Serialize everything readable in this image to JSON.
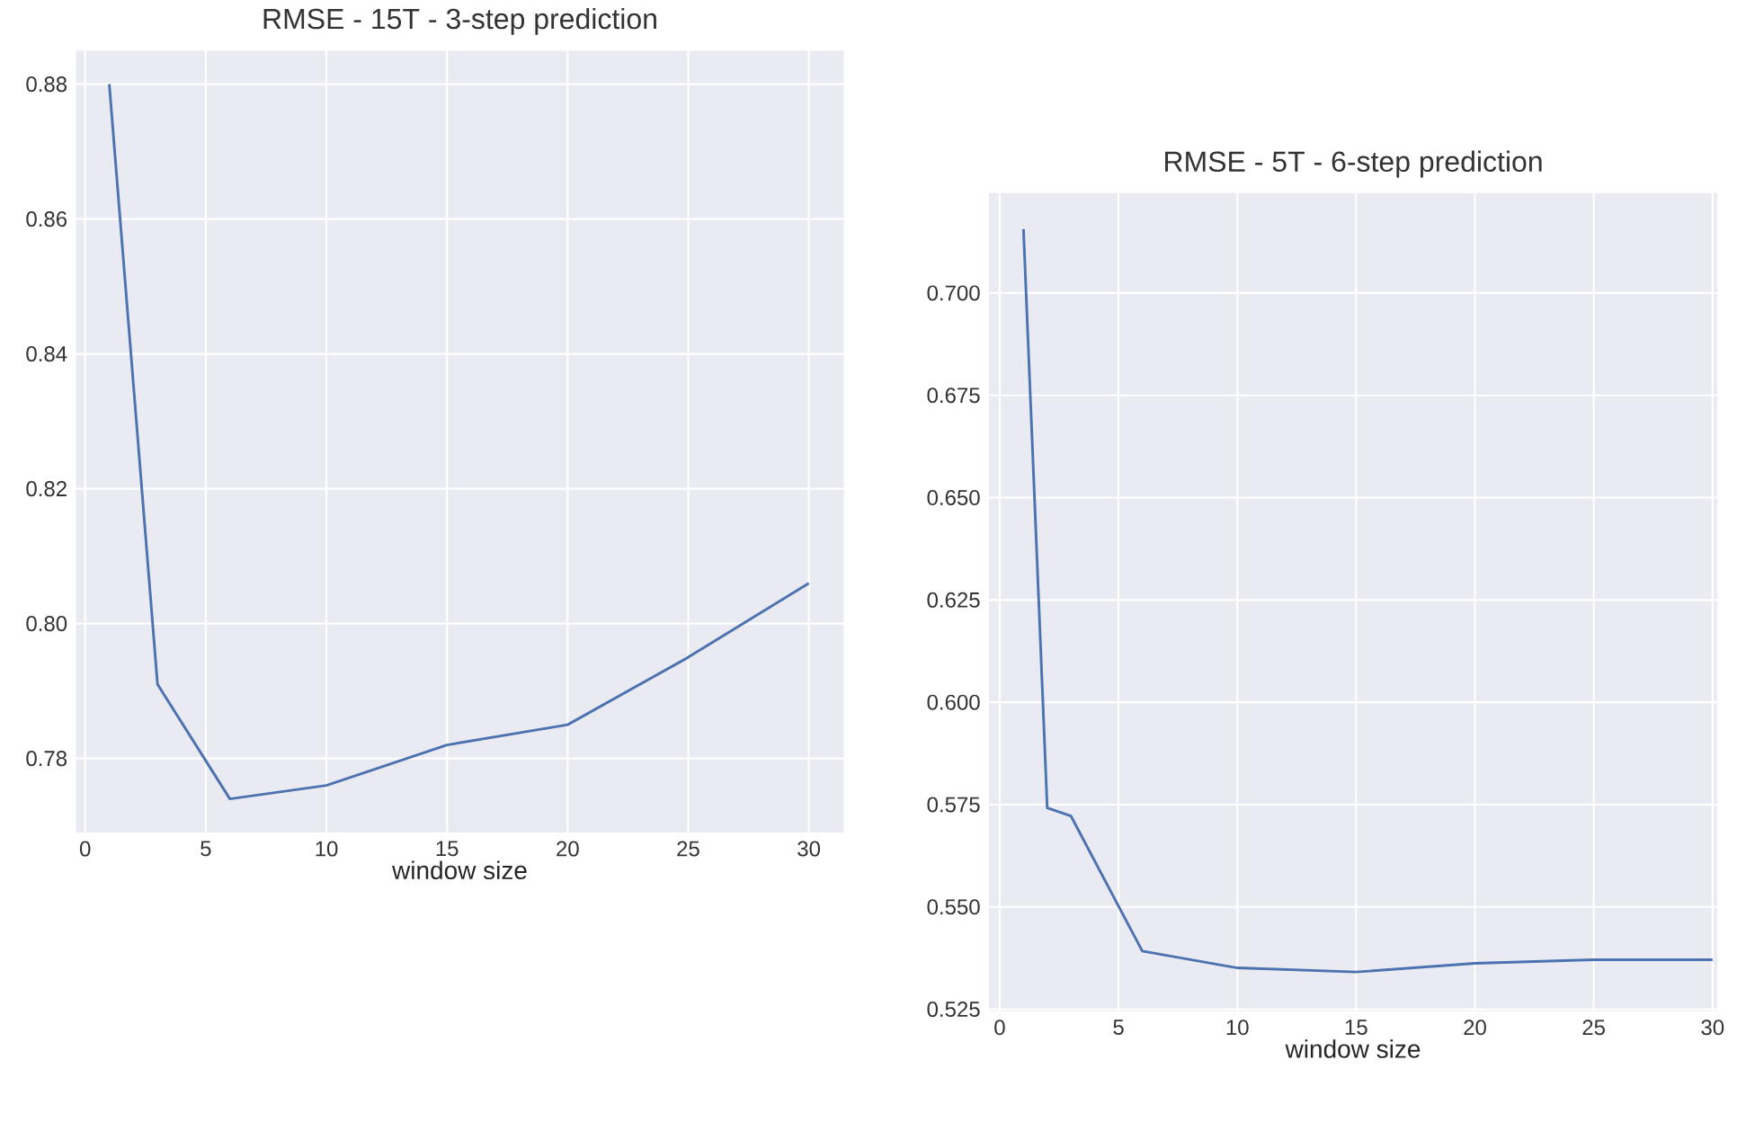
{
  "chart_data": [
    {
      "type": "line",
      "title": "RMSE - 15T - 3-step prediction",
      "xlabel": "window size",
      "x": [
        1,
        3,
        6,
        10,
        15,
        20,
        25,
        30
      ],
      "values": [
        0.88,
        0.791,
        0.774,
        0.776,
        0.782,
        0.785,
        0.795,
        0.806
      ],
      "color": "#4c72b0",
      "xlim": [
        -0.38,
        31.45
      ],
      "ylim": [
        0.769,
        0.885
      ],
      "xticks": [
        0,
        5,
        10,
        15,
        20,
        25,
        30
      ],
      "yticks": [
        0.78,
        {
          "value": 0.8,
          "label": "0.80"
        },
        0.82,
        0.84,
        0.86,
        0.88
      ],
      "grid": true
    },
    {
      "type": "line",
      "title": "RMSE - 5T - 6-step prediction",
      "xlabel": "window size",
      "x": [
        1,
        2,
        3,
        6,
        10,
        15,
        20,
        25,
        30
      ],
      "values": [
        0.7156,
        0.5742,
        0.5722,
        0.5392,
        0.5351,
        0.5341,
        0.5362,
        0.5371,
        0.5371
      ],
      "color": "#4c72b0",
      "xlim": [
        -0.45,
        30.2
      ],
      "ylim": [
        0.5245,
        0.7244
      ],
      "xticks": [
        0,
        5,
        10,
        15,
        20,
        25,
        30
      ],
      "yticks": [
        0.525,
        {
          "value": 0.55,
          "label": "0.550"
        },
        0.575,
        {
          "value": 0.6,
          "label": "0.600"
        },
        0.625,
        {
          "value": 0.65,
          "label": "0.650"
        },
        0.675,
        {
          "value": 0.7,
          "label": "0.700"
        }
      ],
      "grid": true
    }
  ]
}
